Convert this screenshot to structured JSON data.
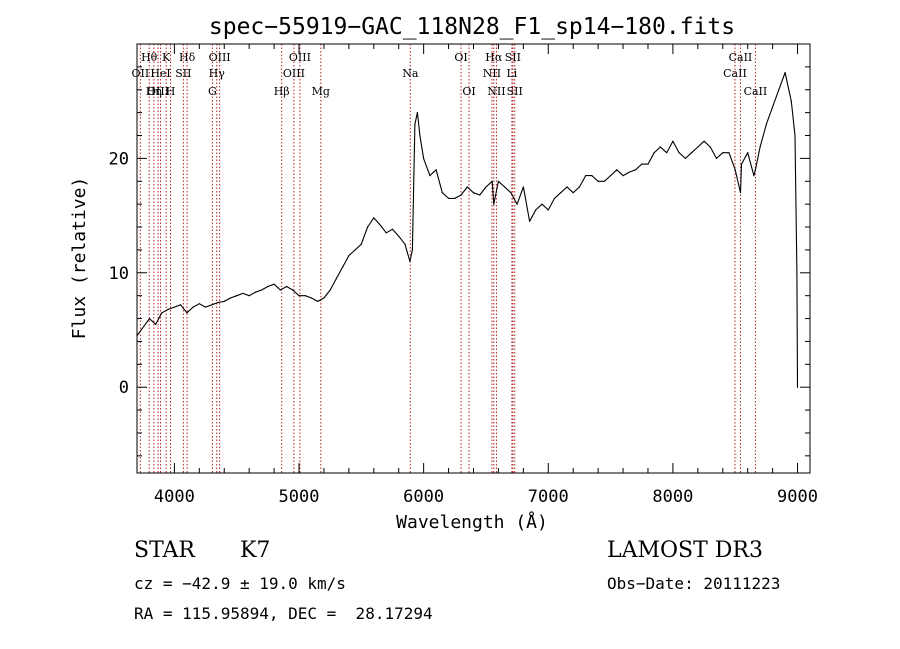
{
  "chart_data": {
    "type": "line",
    "title": "spec−55919−GAC_118N28_F1_sp14−180.fits",
    "xlabel": "Wavelength (Å)",
    "ylabel": "Flux (relative)",
    "xlim": [
      3700,
      9100
    ],
    "ylim": [
      -7.5,
      30
    ],
    "xticks": [
      4000,
      5000,
      6000,
      7000,
      8000,
      9000
    ],
    "yticks": [
      0,
      10,
      20
    ],
    "grid": false,
    "series": [
      {
        "x": [
          3700,
          3800,
          3850,
          3900,
          3950,
          4000,
          4050,
          4100,
          4150,
          4200,
          4250,
          4300,
          4350,
          4400,
          4450,
          4500,
          4550,
          4600,
          4650,
          4700,
          4750,
          4800,
          4850,
          4900,
          4950,
          5000,
          5050,
          5100,
          5150,
          5200,
          5250,
          5300,
          5350,
          5400,
          5450,
          5500,
          5550,
          5600,
          5650,
          5700,
          5750,
          5800,
          5850,
          5890,
          5910,
          5930,
          5950,
          5970,
          6000,
          6050,
          6100,
          6150,
          6200,
          6250,
          6300,
          6350,
          6400,
          6450,
          6500,
          6550,
          6563,
          6600,
          6650,
          6700,
          6750,
          6800,
          6850,
          6900,
          6950,
          7000,
          7050,
          7100,
          7150,
          7200,
          7250,
          7300,
          7350,
          7400,
          7450,
          7500,
          7550,
          7600,
          7650,
          7700,
          7750,
          7800,
          7850,
          7900,
          7950,
          8000,
          8050,
          8100,
          8150,
          8200,
          8250,
          8300,
          8350,
          8400,
          8450,
          8500,
          8542,
          8550,
          8600,
          8650,
          8662,
          8700,
          8750,
          8800,
          8850,
          8900,
          8950,
          8980,
          8995,
          9000
        ],
        "y": [
          4.5,
          6.0,
          5.5,
          6.5,
          6.8,
          7.0,
          7.2,
          6.5,
          7.0,
          7.3,
          7.0,
          7.2,
          7.4,
          7.5,
          7.8,
          8.0,
          8.2,
          8.0,
          8.3,
          8.5,
          8.8,
          9.0,
          8.5,
          8.8,
          8.5,
          8.0,
          8.0,
          7.8,
          7.5,
          7.8,
          8.5,
          9.5,
          10.5,
          11.5,
          12.0,
          12.5,
          14.0,
          14.8,
          14.2,
          13.5,
          13.8,
          13.2,
          12.5,
          11.0,
          12.0,
          23.0,
          24.0,
          22.0,
          20.0,
          18.5,
          19.0,
          17.0,
          16.5,
          16.5,
          16.8,
          17.5,
          17.0,
          16.8,
          17.5,
          18.0,
          16.0,
          18.0,
          17.5,
          17.0,
          16.0,
          17.5,
          14.5,
          15.5,
          16.0,
          15.5,
          16.5,
          17.0,
          17.5,
          17.0,
          17.5,
          18.5,
          18.5,
          18.0,
          18.0,
          18.5,
          19.0,
          18.5,
          18.8,
          19.0,
          19.5,
          19.5,
          20.5,
          21.0,
          20.5,
          21.5,
          20.5,
          20.0,
          20.5,
          21.0,
          21.5,
          21.0,
          20.0,
          20.5,
          20.5,
          19.0,
          17.0,
          19.5,
          20.5,
          18.5,
          19.0,
          21.0,
          23.0,
          24.5,
          26.0,
          27.5,
          25.0,
          22.0,
          10.0,
          0.0
        ]
      }
    ],
    "emission_lines": [
      {
        "label": "Hθ",
        "wavelength": 3798,
        "row": 1
      },
      {
        "label": "OII",
        "wavelength": 3727,
        "row": 2
      },
      {
        "label": "OIII",
        "wavelength": 3869,
        "row": 3
      },
      {
        "label": "K",
        "wavelength": 3934,
        "row": 1
      },
      {
        "label": "HeI",
        "wavelength": 3889,
        "row": 2
      },
      {
        "label": "Hη",
        "wavelength": 3835,
        "row": 3
      },
      {
        "label": "Hδ",
        "wavelength": 4102,
        "row": 1
      },
      {
        "label": "SII",
        "wavelength": 4072,
        "row": 2
      },
      {
        "label": "H",
        "wavelength": 3969,
        "row": 3
      },
      {
        "label": "OIII",
        "wavelength": 4363,
        "row": 1
      },
      {
        "label": "Hγ",
        "wavelength": 4340,
        "row": 2
      },
      {
        "label": "G",
        "wavelength": 4305,
        "row": 3
      },
      {
        "label": "OIII",
        "wavelength": 5007,
        "row": 1
      },
      {
        "label": "OIII",
        "wavelength": 4959,
        "row": 2
      },
      {
        "label": "Hβ",
        "wavelength": 4861,
        "row": 3
      },
      {
        "label": "Mg",
        "wavelength": 5175,
        "row": 3
      },
      {
        "label": "Na",
        "wavelength": 5893,
        "row": 2
      },
      {
        "label": "OI",
        "wavelength": 6300,
        "row": 1
      },
      {
        "label": "OI",
        "wavelength": 6364,
        "row": 3
      },
      {
        "label": "Hα",
        "wavelength": 6563,
        "row": 1
      },
      {
        "label": "NII",
        "wavelength": 6548,
        "row": 2
      },
      {
        "label": "NII",
        "wavelength": 6584,
        "row": 3
      },
      {
        "label": "SII",
        "wavelength": 6716,
        "row": 1
      },
      {
        "label": "Li",
        "wavelength": 6708,
        "row": 2
      },
      {
        "label": "SII",
        "wavelength": 6731,
        "row": 3
      },
      {
        "label": "CaII",
        "wavelength": 8542,
        "row": 1
      },
      {
        "label": "CaII",
        "wavelength": 8498,
        "row": 2
      },
      {
        "label": "CaII",
        "wavelength": 8662,
        "row": 3
      }
    ]
  },
  "info": {
    "class": "STAR",
    "subclass": "K7",
    "survey": "LAMOST DR3",
    "cz": "cz = −42.9 ± 19.0 km/s",
    "coords": "RA = 115.95894, DEC =  28.17294",
    "obs_date": "Obs−Date: 20111223"
  },
  "colors": {
    "spectrum": "#000000",
    "line_markers": "#b22222"
  }
}
